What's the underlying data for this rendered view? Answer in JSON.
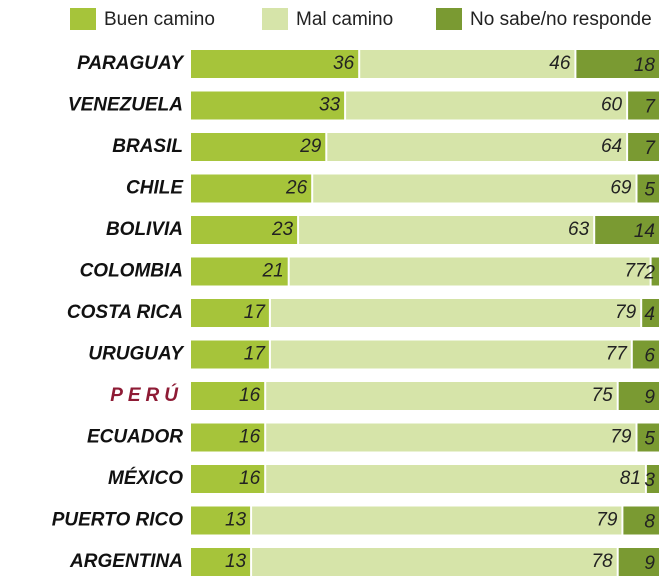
{
  "chart_data": {
    "type": "stacked-bar-horizontal",
    "categories": [
      "PARAGUAY",
      "VENEZUELA",
      "BRASIL",
      "CHILE",
      "BOLIVIA",
      "COLOMBIA",
      "COSTA RICA",
      "URUGUAY",
      "PERÚ",
      "ECUADOR",
      "MÉXICO",
      "PUERTO RICO",
      "ARGENTINA"
    ],
    "series": [
      {
        "name": "Buen camino",
        "color": "#a6c43a",
        "values": [
          36,
          33,
          29,
          26,
          23,
          21,
          17,
          17,
          16,
          16,
          16,
          13,
          13
        ]
      },
      {
        "name": "Mal camino",
        "color": "#d6e4a9",
        "values": [
          46,
          60,
          64,
          69,
          63,
          77,
          79,
          77,
          75,
          79,
          81,
          79,
          78
        ]
      },
      {
        "name": "No sabe/no responde",
        "color": "#7a9a32",
        "values": [
          18,
          7,
          7,
          5,
          14,
          2,
          4,
          6,
          9,
          5,
          3,
          8,
          9
        ]
      }
    ],
    "xlim": [
      0,
      100
    ],
    "highlight_category": "PERÚ",
    "highlight_color": "#8e1b35"
  }
}
